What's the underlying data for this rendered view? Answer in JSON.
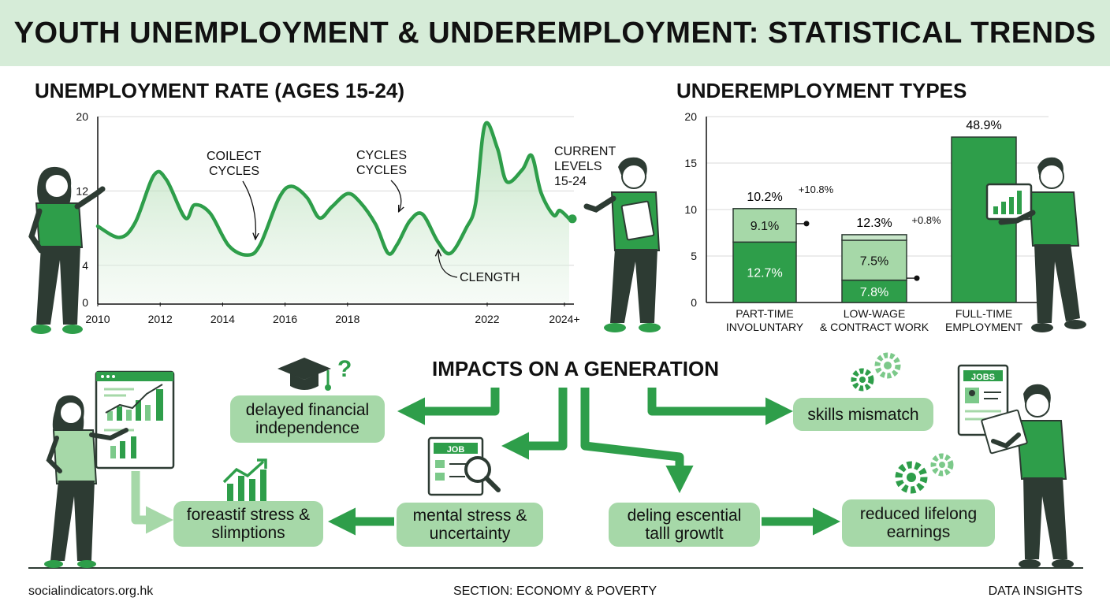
{
  "title": "YOUTH UNEMPLOYMENT & UNDEREMPLOYMENT: STATISTICAL TRENDS",
  "colors": {
    "green": "#2e9e4a",
    "light_green": "#a6d8a8",
    "mid_green": "#7cc98a",
    "dark": "#2d3b33",
    "banner": "#d6ecd8"
  },
  "chart_data": [
    {
      "type": "line",
      "title": "UNEMPLOYMENT RATE (AGES 15-24)",
      "x_tick_labels": [
        "2010",
        "2012",
        "2014",
        "2016",
        "2018",
        "2022",
        "2024+"
      ],
      "y_tick_labels": [
        "0",
        "4",
        "12",
        "20"
      ],
      "ylim": [
        0,
        20
      ],
      "grid": true,
      "series": [
        {
          "values": [
            [
              2010.0,
              8.2
            ],
            [
              2010.7,
              7.0
            ],
            [
              2011.2,
              8.6
            ],
            [
              2011.8,
              13.7
            ],
            [
              2012.2,
              13.2
            ],
            [
              2012.8,
              9.1
            ],
            [
              2013.1,
              10.5
            ],
            [
              2013.6,
              9.6
            ],
            [
              2014.2,
              6.1
            ],
            [
              2014.8,
              5.1
            ],
            [
              2015.2,
              6.2
            ],
            [
              2015.8,
              11.2
            ],
            [
              2016.2,
              12.5
            ],
            [
              2016.7,
              11.3
            ],
            [
              2017.1,
              9.1
            ],
            [
              2017.5,
              10.3
            ],
            [
              2018.0,
              11.7
            ],
            [
              2018.4,
              10.8
            ],
            [
              2018.9,
              8.4
            ],
            [
              2019.3,
              5.3
            ],
            [
              2019.6,
              6.3
            ],
            [
              2020.0,
              8.8
            ],
            [
              2020.4,
              9.5
            ],
            [
              2020.9,
              6.5
            ],
            [
              2021.3,
              5.3
            ],
            [
              2021.8,
              8.0
            ],
            [
              2022.1,
              10.6
            ],
            [
              2022.4,
              19.1
            ],
            [
              2022.8,
              16.6
            ],
            [
              2023.1,
              13.0
            ],
            [
              2023.6,
              14.3
            ],
            [
              2023.9,
              15.8
            ],
            [
              2024.2,
              11.8
            ],
            [
              2024.6,
              9.4
            ],
            [
              2024.8,
              9.9
            ],
            [
              2025.1,
              9.0
            ]
          ]
        }
      ],
      "annotations": [
        "COILECT CYCLES",
        "CYCLES CYCLES",
        "CURRENT LEVELS 15-24",
        "CLENGTH"
      ]
    },
    {
      "type": "bar",
      "title": "UNDEREMPLOYMENT TYPES",
      "categories": [
        "PART-TIME INVOLUNTARY",
        "LOW-WAGE & CONTRACT WORK",
        "FULL-TIME EMPLOYMENT"
      ],
      "y_tick_labels": [
        "0",
        "5",
        "10",
        "15",
        "20"
      ],
      "ylim": [
        0,
        20
      ],
      "stacks": [
        {
          "segments": [
            {
              "value": 6.5,
              "label": "12.7%"
            },
            {
              "value": 3.6,
              "label": "9.1%"
            }
          ],
          "total_label": "10.2%",
          "delta_label": "+10.8%"
        },
        {
          "segments": [
            {
              "value": 2.4,
              "label": "7.8%"
            },
            {
              "value": 4.3,
              "label": "7.5%"
            },
            {
              "value": 0.6,
              "label": ""
            }
          ],
          "total_label": "12.3%",
          "delta_label": "+0.8%"
        },
        {
          "segments": [
            {
              "value": 17.8,
              "label": ""
            }
          ],
          "total_label": "48.9%",
          "delta_label": ""
        }
      ]
    }
  ],
  "impacts": {
    "title": "IMPACTS ON A GENERATION",
    "boxes": {
      "delayed": "delayed financial independence",
      "skills": "skills mismatch",
      "foreastif": "foreastif stress & slimptions",
      "mental": "mental stress & uncertainty",
      "deling": "deling escential talll growtlt",
      "reduced": "reduced lifelong earnings"
    },
    "icon_labels": {
      "job_doc": "JOB",
      "jobs_card": "JOBS"
    }
  },
  "footer": {
    "left": "socialindicators.org.hk",
    "center": "SECTION: ECONOMY & POVERTY",
    "right": "DATA INSIGHTS"
  }
}
